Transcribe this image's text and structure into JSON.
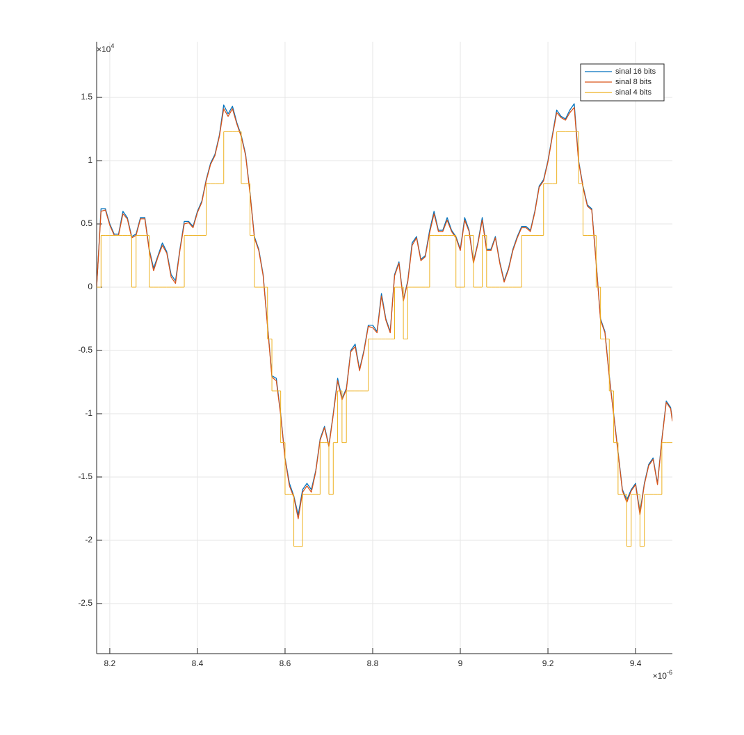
{
  "chart_data": {
    "type": "line",
    "x_multiplier": {
      "base": "×10",
      "exponent": "-6"
    },
    "y_multiplier": {
      "base": "×10",
      "exponent": "4"
    },
    "xlim": [
      8.17,
      9.484
    ],
    "ylim": [
      -2.896,
      1.94
    ],
    "xticks": [
      8.2,
      8.4,
      8.6,
      8.8,
      9,
      9.2,
      9.4
    ],
    "yticks": [
      -2.5,
      -2,
      -1.5,
      -1,
      -0.5,
      0,
      0.5,
      1,
      1.5
    ],
    "grid": true,
    "legend_loc": "northeast",
    "x": [
      8.17,
      8.18,
      8.19,
      8.2,
      8.21,
      8.22,
      8.23,
      8.24,
      8.25,
      8.26,
      8.27,
      8.28,
      8.29,
      8.3,
      8.31,
      8.32,
      8.33,
      8.34,
      8.35,
      8.36,
      8.37,
      8.38,
      8.39,
      8.4,
      8.41,
      8.42,
      8.43,
      8.44,
      8.45,
      8.46,
      8.47,
      8.48,
      8.49,
      8.5,
      8.51,
      8.52,
      8.53,
      8.54,
      8.55,
      8.56,
      8.57,
      8.58,
      8.59,
      8.6,
      8.61,
      8.62,
      8.63,
      8.64,
      8.65,
      8.66,
      8.67,
      8.68,
      8.69,
      8.7,
      8.71,
      8.72,
      8.73,
      8.74,
      8.75,
      8.76,
      8.77,
      8.78,
      8.79,
      8.8,
      8.81,
      8.82,
      8.83,
      8.84,
      8.85,
      8.86,
      8.87,
      8.88,
      8.89,
      8.9,
      8.91,
      8.92,
      8.93,
      8.94,
      8.95,
      8.96,
      8.97,
      8.98,
      8.99,
      9,
      9.01,
      9.02,
      9.03,
      9.04,
      9.05,
      9.06,
      9.07,
      9.08,
      9.09,
      9.1,
      9.11,
      9.12,
      9.13,
      9.14,
      9.15,
      9.16,
      9.17,
      9.18,
      9.19,
      9.2,
      9.21,
      9.22,
      9.23,
      9.24,
      9.25,
      9.26,
      9.27,
      9.28,
      9.29,
      9.3,
      9.31,
      9.32,
      9.33,
      9.34,
      9.35,
      9.36,
      9.37,
      9.38,
      9.39,
      9.4,
      9.41,
      9.42,
      9.43,
      9.44,
      9.45,
      9.46,
      9.47,
      9.48,
      9.484
    ],
    "series": [
      {
        "name": "sinal 16 bits",
        "color": "#0072bd",
        "values": [
          0,
          0.62,
          0.62,
          0.5,
          0.42,
          0.42,
          0.6,
          0.55,
          0.4,
          0.42,
          0.55,
          0.55,
          0.3,
          0.15,
          0.25,
          0.35,
          0.28,
          0.1,
          0.05,
          0.3,
          0.52,
          0.52,
          0.48,
          0.6,
          0.68,
          0.85,
          0.98,
          1.05,
          1.2,
          1.44,
          1.37,
          1.43,
          1.3,
          1.2,
          1.05,
          0.75,
          0.4,
          0.3,
          0.1,
          -0.3,
          -0.7,
          -0.72,
          -1,
          -1.35,
          -1.55,
          -1.65,
          -1.8,
          -1.6,
          -1.55,
          -1.6,
          -1.45,
          -1.2,
          -1.1,
          -1.25,
          -1,
          -0.72,
          -0.88,
          -0.8,
          -0.5,
          -0.45,
          -0.65,
          -0.5,
          -0.3,
          -0.3,
          -0.35,
          -0.05,
          -0.25,
          -0.35,
          0.1,
          0.2,
          -0.1,
          0.05,
          0.35,
          0.4,
          0.22,
          0.25,
          0.45,
          0.6,
          0.45,
          0.45,
          0.55,
          0.45,
          0.4,
          0.3,
          0.55,
          0.45,
          0.2,
          0.35,
          0.55,
          0.3,
          0.3,
          0.4,
          0.2,
          0.05,
          0.15,
          0.3,
          0.4,
          0.48,
          0.48,
          0.45,
          0.6,
          0.8,
          0.85,
          1,
          1.2,
          1.4,
          1.35,
          1.33,
          1.4,
          1.45,
          1,
          0.8,
          0.65,
          0.62,
          0.2,
          -0.25,
          -0.35,
          -0.7,
          -1,
          -1.3,
          -1.6,
          -1.68,
          -1.6,
          -1.55,
          -1.78,
          -1.55,
          -1.4,
          -1.35,
          -1.55,
          -1.2,
          -0.9,
          -0.95,
          -1.05
        ]
      },
      {
        "name": "sinal 8 bits",
        "color": "#d95319",
        "values": [
          0,
          0.6,
          0.61,
          0.49,
          0.41,
          0.41,
          0.58,
          0.54,
          0.39,
          0.41,
          0.54,
          0.54,
          0.29,
          0.13,
          0.24,
          0.33,
          0.27,
          0.08,
          0.03,
          0.29,
          0.5,
          0.51,
          0.47,
          0.59,
          0.67,
          0.84,
          0.97,
          1.04,
          1.19,
          1.41,
          1.35,
          1.41,
          1.29,
          1.19,
          1.04,
          0.74,
          0.39,
          0.29,
          0.09,
          -0.31,
          -0.71,
          -0.74,
          -1.01,
          -1.36,
          -1.57,
          -1.66,
          -1.83,
          -1.62,
          -1.57,
          -1.62,
          -1.46,
          -1.21,
          -1.11,
          -1.26,
          -1.01,
          -0.74,
          -0.89,
          -0.81,
          -0.51,
          -0.47,
          -0.66,
          -0.51,
          -0.31,
          -0.32,
          -0.36,
          -0.07,
          -0.26,
          -0.36,
          0.09,
          0.19,
          -0.11,
          0.04,
          0.33,
          0.39,
          0.21,
          0.24,
          0.43,
          0.58,
          0.44,
          0.44,
          0.53,
          0.44,
          0.39,
          0.29,
          0.53,
          0.44,
          0.19,
          0.34,
          0.53,
          0.29,
          0.29,
          0.39,
          0.19,
          0.04,
          0.14,
          0.29,
          0.39,
          0.47,
          0.47,
          0.44,
          0.59,
          0.79,
          0.84,
          0.99,
          1.19,
          1.38,
          1.34,
          1.32,
          1.38,
          1.42,
          0.99,
          0.79,
          0.64,
          0.61,
          0.19,
          -0.26,
          -0.36,
          -0.71,
          -1.01,
          -1.31,
          -1.61,
          -1.7,
          -1.61,
          -1.56,
          -1.8,
          -1.56,
          -1.41,
          -1.36,
          -1.56,
          -1.21,
          -0.91,
          -0.96,
          -1.06
        ]
      },
      {
        "name": "sinal 4 bits",
        "color": "#edb120",
        "drawstyle": "steps-post",
        "values": [
          0,
          0.4096,
          0.4096,
          0.4096,
          0.4096,
          0.4096,
          0.4096,
          0.4096,
          0,
          0.4096,
          0.4096,
          0.4096,
          0,
          0,
          0,
          0,
          0,
          0,
          0,
          0,
          0.4096,
          0.4096,
          0.4096,
          0.4096,
          0.4096,
          0.8192,
          0.8192,
          0.8192,
          0.8192,
          1.2288,
          1.2288,
          1.2288,
          1.2288,
          0.8192,
          0.8192,
          0.4096,
          0,
          0,
          0,
          -0.4096,
          -0.8192,
          -0.8192,
          -1.2288,
          -1.6384,
          -1.6384,
          -2.048,
          -2.048,
          -1.6384,
          -1.6384,
          -1.6384,
          -1.6384,
          -1.2288,
          -1.2288,
          -1.6384,
          -1.2288,
          -0.8192,
          -1.2288,
          -0.8192,
          -0.8192,
          -0.8192,
          -0.8192,
          -0.8192,
          -0.4096,
          -0.4096,
          -0.4096,
          -0.4096,
          -0.4096,
          -0.4096,
          0,
          0,
          -0.4096,
          0,
          0,
          0,
          0,
          0,
          0.4096,
          0.4096,
          0.4096,
          0.4096,
          0.4096,
          0.4096,
          0,
          0,
          0.4096,
          0.4096,
          0,
          0,
          0.4096,
          0,
          0,
          0,
          0,
          0,
          0,
          0,
          0,
          0.4096,
          0.4096,
          0.4096,
          0.4096,
          0.4096,
          0.8192,
          0.8192,
          0.8192,
          1.2288,
          1.2288,
          1.2288,
          1.2288,
          1.2288,
          0.8192,
          0.4096,
          0.4096,
          0.4096,
          0,
          -0.4096,
          -0.4096,
          -0.8192,
          -1.2288,
          -1.6384,
          -1.6384,
          -2.048,
          -1.6384,
          -1.6384,
          -2.048,
          -1.6384,
          -1.6384,
          -1.6384,
          -1.6384,
          -1.2288,
          -1.2288,
          -1.2288,
          -1.2288
        ]
      }
    ]
  }
}
